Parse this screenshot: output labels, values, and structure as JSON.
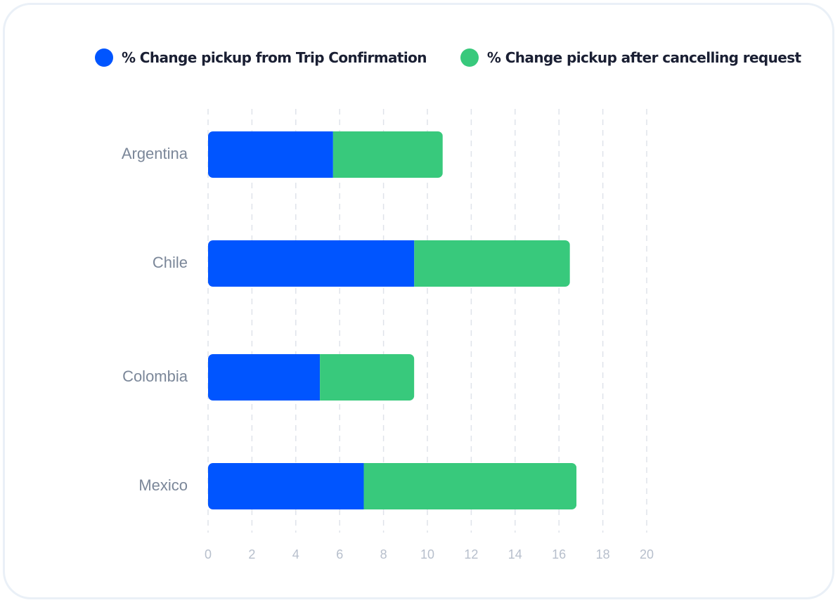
{
  "chart_data": {
    "type": "bar",
    "orientation": "horizontal",
    "stacked": true,
    "categories": [
      "Argentina",
      "Chile",
      "Colombia",
      "Mexico"
    ],
    "series": [
      {
        "name": "% Change pickup from Trip Confirmation",
        "values": [
          5.7,
          9.4,
          5.1,
          7.1
        ],
        "color": "#0055ff"
      },
      {
        "name": "% Change pickup after cancelling request",
        "values": [
          5.0,
          7.1,
          4.3,
          9.7
        ],
        "color": "#38c97c"
      }
    ],
    "xlim": [
      0,
      20
    ],
    "xticks": [
      "0",
      "2",
      "4",
      "6",
      "8",
      "10",
      "12",
      "14",
      "16",
      "18",
      "20"
    ],
    "grid": true,
    "legend": "top"
  }
}
